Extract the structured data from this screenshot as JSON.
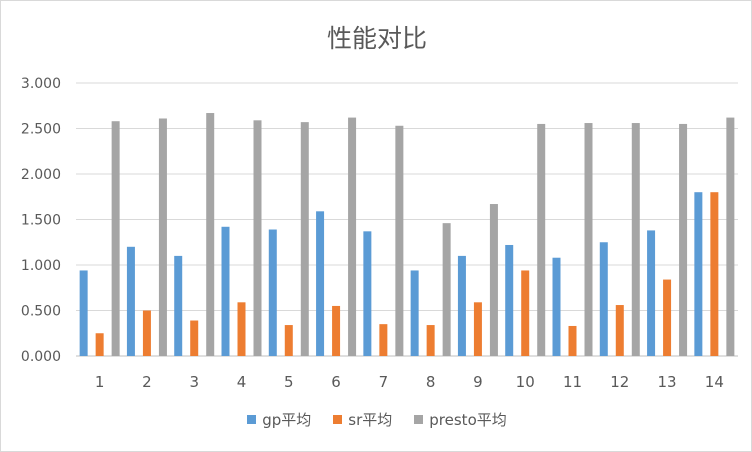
{
  "chart_data": {
    "type": "bar",
    "title": "性能对比",
    "categories": [
      "1",
      "2",
      "3",
      "4",
      "5",
      "6",
      "7",
      "8",
      "9",
      "10",
      "11",
      "12",
      "13",
      "14"
    ],
    "ylim": [
      0,
      3
    ],
    "yticks": [
      "0.000",
      "0.500",
      "1.000",
      "1.500",
      "2.000",
      "2.500",
      "3.000"
    ],
    "grid": true,
    "legend_position": "bottom",
    "series": [
      {
        "name": "gp平均",
        "color": "#5b9bd5",
        "values": [
          0.94,
          1.2,
          1.1,
          1.42,
          1.39,
          1.59,
          1.37,
          0.94,
          1.1,
          1.22,
          1.08,
          1.25,
          1.38,
          1.8
        ]
      },
      {
        "name": "sr平均",
        "color": "#ed7d31",
        "values": [
          0.25,
          0.5,
          0.39,
          0.59,
          0.34,
          0.55,
          0.35,
          0.34,
          0.59,
          0.94,
          0.33,
          0.56,
          0.84,
          1.8
        ]
      },
      {
        "name": "presto平均",
        "color": "#a5a5a5",
        "values": [
          2.58,
          2.61,
          2.67,
          2.59,
          2.57,
          2.62,
          2.53,
          1.46,
          1.67,
          2.55,
          2.56,
          2.56,
          2.55,
          2.62
        ]
      }
    ]
  }
}
